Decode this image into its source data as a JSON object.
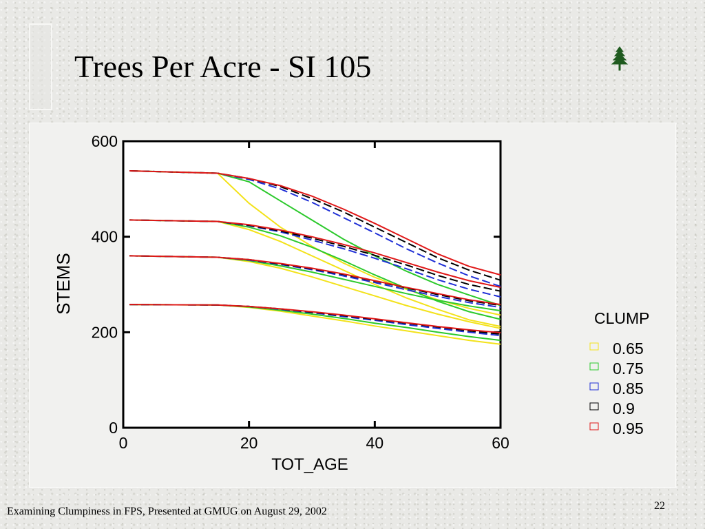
{
  "slide": {
    "title": "Trees Per Acre - SI 105",
    "footer": "Examining Clumpiness in FPS, Presented at GMUG on August 29, 2002",
    "page_number": "22",
    "icon": "tree-icon"
  },
  "chart_data": {
    "type": "line",
    "xlabel": "TOT_AGE",
    "ylabel": "STEMS",
    "xlim": [
      0,
      60
    ],
    "ylim": [
      0,
      600
    ],
    "xticks": [
      0,
      20,
      40,
      60
    ],
    "yticks": [
      0,
      200,
      400,
      600
    ],
    "grid": false,
    "legend_title": "CLUMP",
    "legend_position": "right",
    "series": [
      {
        "name": "0.65",
        "color": "#f3e21a",
        "dash": "solid"
      },
      {
        "name": "0.75",
        "color": "#2cc92c",
        "dash": "solid"
      },
      {
        "name": "0.85",
        "color": "#1f2fd6",
        "dash": "dashed"
      },
      {
        "name": "0.9",
        "color": "#000000",
        "dash": "dashed"
      },
      {
        "name": "0.95",
        "color": "#e01818",
        "dash": "solid"
      }
    ],
    "groups": [
      {
        "x": [
          1,
          15,
          20,
          25,
          30,
          35,
          40,
          45,
          50,
          55,
          60
        ],
        "lines": {
          "0.65": [
            538,
            533,
            470,
            420,
            380,
            345,
            315,
            290,
            268,
            250,
            236
          ],
          "0.75": [
            538,
            533,
            515,
            475,
            435,
            395,
            360,
            328,
            300,
            278,
            256
          ],
          "0.85": [
            538,
            533,
            520,
            500,
            472,
            440,
            408,
            375,
            345,
            318,
            296
          ],
          "0.9": [
            538,
            533,
            522,
            505,
            480,
            452,
            420,
            388,
            356,
            330,
            309
          ],
          "0.95": [
            538,
            533,
            522,
            507,
            485,
            458,
            428,
            396,
            364,
            338,
            320
          ]
        }
      },
      {
        "x": [
          1,
          15,
          20,
          25,
          30,
          35,
          40,
          45,
          50,
          55,
          60
        ],
        "lines": {
          "0.65": [
            435,
            432,
            415,
            390,
            360,
            330,
            300,
            272,
            248,
            226,
            212
          ],
          "0.75": [
            435,
            432,
            420,
            402,
            378,
            350,
            320,
            292,
            265,
            243,
            227
          ],
          "0.85": [
            435,
            432,
            423,
            410,
            393,
            375,
            355,
            333,
            310,
            290,
            274
          ],
          "0.9": [
            435,
            432,
            424,
            412,
            397,
            380,
            361,
            341,
            319,
            300,
            286
          ],
          "0.95": [
            435,
            432,
            425,
            414,
            400,
            384,
            366,
            346,
            326,
            308,
            294
          ]
        }
      },
      {
        "x": [
          1,
          15,
          20,
          25,
          30,
          35,
          40,
          45,
          50,
          55,
          60
        ],
        "lines": {
          "0.65": [
            360,
            357,
            348,
            334,
            316,
            296,
            276,
            256,
            238,
            222,
            208
          ],
          "0.75": [
            360,
            357,
            350,
            339,
            326,
            311,
            296,
            281,
            267,
            255,
            245
          ],
          "0.85": [
            360,
            357,
            351,
            342,
            331,
            318,
            304,
            289,
            275,
            262,
            252
          ],
          "0.9": [
            360,
            357,
            352,
            343,
            333,
            321,
            307,
            293,
            279,
            266,
            256
          ],
          "0.95": [
            360,
            357,
            352,
            344,
            334,
            322,
            308,
            294,
            281,
            268,
            258
          ]
        }
      },
      {
        "x": [
          1,
          15,
          20,
          25,
          30,
          35,
          40,
          45,
          50,
          55,
          60
        ],
        "lines": {
          "0.65": [
            258,
            257,
            252,
            244,
            234,
            224,
            213,
            203,
            193,
            183,
            175
          ],
          "0.75": [
            258,
            257,
            253,
            246,
            238,
            229,
            219,
            210,
            200,
            191,
            183
          ],
          "0.85": [
            258,
            257,
            254,
            248,
            241,
            233,
            225,
            216,
            208,
            200,
            193
          ],
          "0.9": [
            258,
            257,
            254,
            249,
            242,
            235,
            227,
            219,
            211,
            203,
            196
          ],
          "0.95": [
            258,
            257,
            254,
            249,
            243,
            236,
            228,
            220,
            212,
            205,
            199
          ]
        }
      }
    ]
  }
}
